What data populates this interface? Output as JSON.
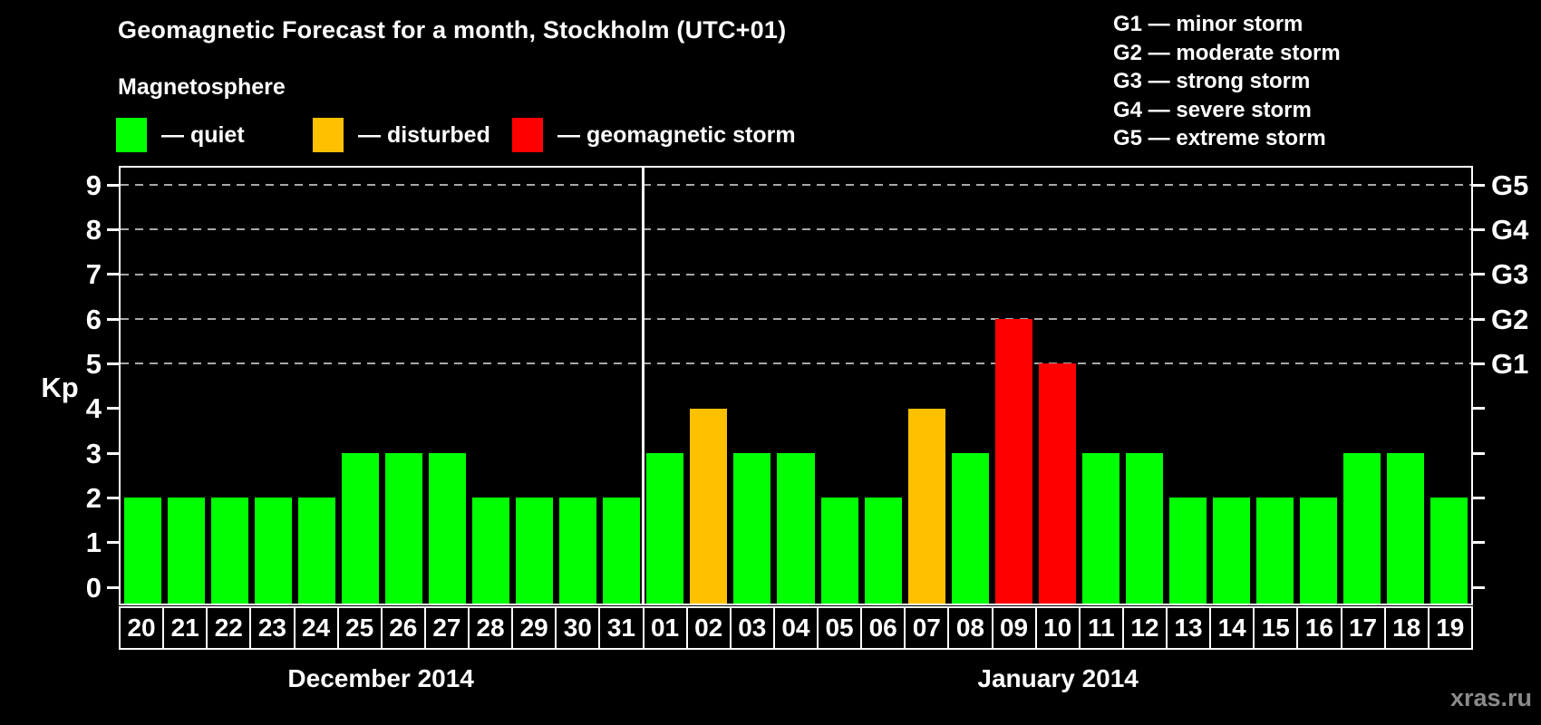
{
  "title": "Geomagnetic Forecast for a month, Stockholm (UTC+01)",
  "watermark": "xras.ru",
  "legend": {
    "heading": "Magnetosphere",
    "items": [
      {
        "state": "quiet",
        "label": "— quiet",
        "color": "#00ff00"
      },
      {
        "state": "disturbed",
        "label": "— disturbed",
        "color": "#ffc000"
      },
      {
        "state": "storm",
        "label": "— geomagnetic storm",
        "color": "#ff0000"
      }
    ]
  },
  "g_legend": [
    "G1 — minor storm",
    "G2 — moderate storm",
    "G3 — strong storm",
    "G4 — severe storm",
    "G5 — extreme storm"
  ],
  "y_axis": {
    "label": "Kp",
    "ticks": [
      "0",
      "1",
      "2",
      "3",
      "4",
      "5",
      "6",
      "7",
      "8",
      "9"
    ]
  },
  "right_axis": {
    "labels": [
      "G1",
      "G2",
      "G3",
      "G4",
      "G5"
    ],
    "kp_levels": [
      5,
      6,
      7,
      8,
      9
    ]
  },
  "colors": {
    "quiet": "#00ff00",
    "disturbed": "#ffc000",
    "storm": "#ff0000",
    "grid": "#a8a8a8",
    "axis": "#ffffff"
  },
  "chart_data": {
    "type": "bar",
    "title": "Geomagnetic Forecast for a month, Stockholm (UTC+01)",
    "ylabel": "Kp",
    "ylim": [
      0,
      9
    ],
    "gridlines_at": [
      5,
      6,
      7,
      8,
      9
    ],
    "legend_position": "top",
    "months": [
      {
        "name": "December 2014",
        "days": [
          {
            "date": "20",
            "kp": 2,
            "state": "quiet"
          },
          {
            "date": "21",
            "kp": 2,
            "state": "quiet"
          },
          {
            "date": "22",
            "kp": 2,
            "state": "quiet"
          },
          {
            "date": "23",
            "kp": 2,
            "state": "quiet"
          },
          {
            "date": "24",
            "kp": 2,
            "state": "quiet"
          },
          {
            "date": "25",
            "kp": 3,
            "state": "quiet"
          },
          {
            "date": "26",
            "kp": 3,
            "state": "quiet"
          },
          {
            "date": "27",
            "kp": 3,
            "state": "quiet"
          },
          {
            "date": "28",
            "kp": 2,
            "state": "quiet"
          },
          {
            "date": "29",
            "kp": 2,
            "state": "quiet"
          },
          {
            "date": "30",
            "kp": 2,
            "state": "quiet"
          },
          {
            "date": "31",
            "kp": 2,
            "state": "quiet"
          }
        ]
      },
      {
        "name": "January 2014",
        "days": [
          {
            "date": "01",
            "kp": 3,
            "state": "quiet"
          },
          {
            "date": "02",
            "kp": 4,
            "state": "disturbed"
          },
          {
            "date": "03",
            "kp": 3,
            "state": "quiet"
          },
          {
            "date": "04",
            "kp": 3,
            "state": "quiet"
          },
          {
            "date": "05",
            "kp": 2,
            "state": "quiet"
          },
          {
            "date": "06",
            "kp": 2,
            "state": "quiet"
          },
          {
            "date": "07",
            "kp": 4,
            "state": "disturbed"
          },
          {
            "date": "08",
            "kp": 3,
            "state": "quiet"
          },
          {
            "date": "09",
            "kp": 6,
            "state": "storm"
          },
          {
            "date": "10",
            "kp": 5,
            "state": "storm"
          },
          {
            "date": "11",
            "kp": 3,
            "state": "quiet"
          },
          {
            "date": "12",
            "kp": 3,
            "state": "quiet"
          },
          {
            "date": "13",
            "kp": 2,
            "state": "quiet"
          },
          {
            "date": "14",
            "kp": 2,
            "state": "quiet"
          },
          {
            "date": "15",
            "kp": 2,
            "state": "quiet"
          },
          {
            "date": "16",
            "kp": 2,
            "state": "quiet"
          },
          {
            "date": "17",
            "kp": 3,
            "state": "quiet"
          },
          {
            "date": "18",
            "kp": 3,
            "state": "quiet"
          },
          {
            "date": "19",
            "kp": 2,
            "state": "quiet"
          }
        ]
      }
    ]
  }
}
